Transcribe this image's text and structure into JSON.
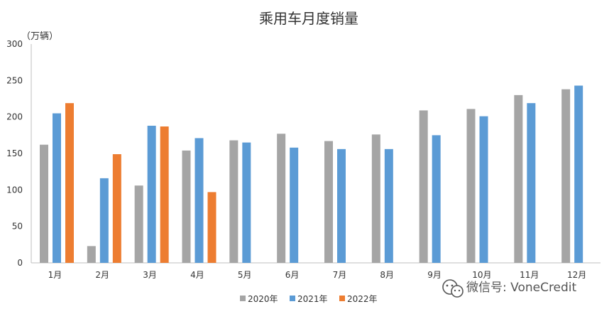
{
  "chart_data": {
    "type": "bar",
    "title": "乘用车月度销量",
    "ylabel": "（万辆）",
    "xlabel": "",
    "ylim": [
      0,
      300
    ],
    "yticks": [
      0,
      50,
      100,
      150,
      200,
      250,
      300
    ],
    "categories": [
      "1月",
      "2月",
      "3月",
      "4月",
      "5月",
      "6月",
      "7月",
      "8月",
      "9月",
      "10月",
      "11月",
      "12月"
    ],
    "series": [
      {
        "name": "2020年",
        "color": "#a5a5a5",
        "values": [
          162,
          23,
          106,
          154,
          168,
          177,
          167,
          176,
          209,
          211,
          230,
          238
        ]
      },
      {
        "name": "2021年",
        "color": "#5b9bd5",
        "values": [
          205,
          116,
          188,
          171,
          165,
          158,
          156,
          156,
          175,
          201,
          219,
          243
        ]
      },
      {
        "name": "2022年",
        "color": "#ed7d31",
        "values": [
          219,
          149,
          187,
          97,
          null,
          null,
          null,
          null,
          null,
          null,
          null,
          null
        ]
      }
    ],
    "grid": false,
    "legend": "bottom"
  },
  "watermark": {
    "text": "微信号: VoneCredit",
    "icon": "wechat-icon"
  }
}
